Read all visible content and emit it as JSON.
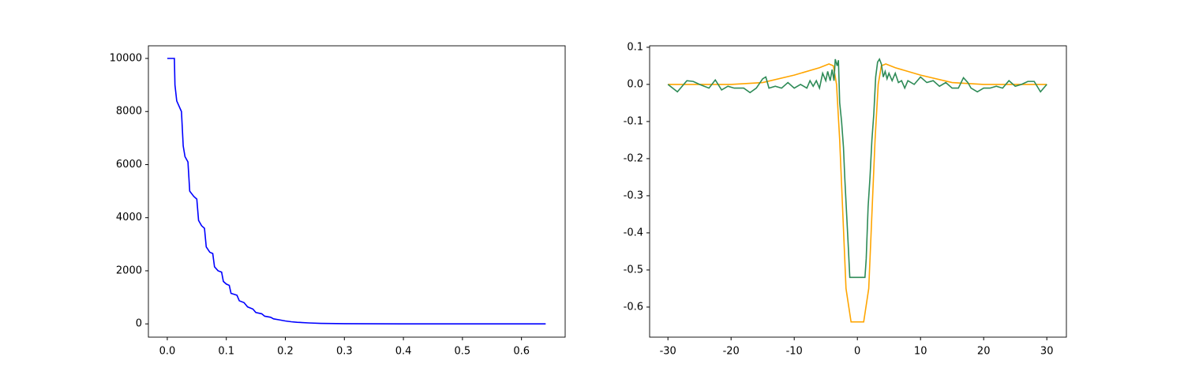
{
  "chart_data": [
    {
      "type": "line",
      "xlim": [
        -0.032,
        0.674
      ],
      "xticks": [
        {
          "value": 0,
          "label": "0.0"
        },
        0.1,
        0.2,
        0.3,
        0.4,
        0.5,
        0.6
      ],
      "ylim": [
        -500,
        10476
      ],
      "yticks": [
        0,
        2000,
        4000,
        6000,
        8000,
        10000
      ],
      "series": [
        {
          "color": "#0000ff",
          "x": [
            0.0,
            0.012,
            0.013,
            0.016,
            0.02,
            0.024,
            0.027,
            0.03,
            0.035,
            0.038,
            0.045,
            0.05,
            0.053,
            0.058,
            0.063,
            0.066,
            0.072,
            0.077,
            0.08,
            0.086,
            0.092,
            0.095,
            0.1,
            0.105,
            0.108,
            0.118,
            0.122,
            0.13,
            0.136,
            0.145,
            0.15,
            0.16,
            0.165,
            0.175,
            0.18,
            0.19,
            0.2,
            0.21,
            0.22,
            0.24,
            0.26,
            0.3,
            0.35,
            0.4,
            0.5,
            0.641
          ],
          "values": [
            10000,
            10000,
            9000,
            8400,
            8200,
            8000,
            6700,
            6300,
            6100,
            5000,
            4800,
            4700,
            3900,
            3700,
            3600,
            2900,
            2700,
            2650,
            2150,
            2000,
            1950,
            1600,
            1500,
            1450,
            1150,
            1080,
            870,
            800,
            640,
            560,
            430,
            380,
            290,
            250,
            190,
            150,
            110,
            80,
            60,
            35,
            20,
            8,
            3,
            1,
            0,
            0
          ]
        }
      ]
    },
    {
      "type": "line",
      "xlim": [
        -32.9,
        33.1
      ],
      "xticks": [
        -30,
        -20,
        -10,
        0,
        10,
        20,
        30
      ],
      "ylim": [
        -0.681,
        0.104
      ],
      "yticks": [
        -0.6,
        -0.5,
        -0.4,
        -0.3,
        -0.2,
        -0.1,
        {
          "value": 0,
          "label": "0.0"
        },
        0.1
      ],
      "series": [
        {
          "color": "#ffa500",
          "x": [
            -30,
            -20,
            -15,
            -10,
            -6,
            -4.5,
            -3.8,
            -3.3,
            -2.8,
            -2.3,
            -1.8,
            -1,
            1,
            1.8,
            2.3,
            2.8,
            3.3,
            3.8,
            4.5,
            6,
            10,
            15,
            20,
            30
          ],
          "values": [
            0,
            0,
            0.005,
            0.025,
            0.045,
            0.055,
            0.05,
            0,
            -0.15,
            -0.35,
            -0.55,
            -0.64,
            -0.64,
            -0.55,
            -0.35,
            -0.15,
            0,
            0.05,
            0.055,
            0.045,
            0.025,
            0.005,
            0,
            0
          ]
        },
        {
          "color": "#2e8b57",
          "x": [
            -30,
            -28.5,
            -27,
            -26,
            -25,
            -23.5,
            -22.5,
            -21.5,
            -20.5,
            -19.5,
            -18,
            -17,
            -16,
            -15,
            -14.5,
            -14,
            -13,
            -12,
            -11,
            -10,
            -9,
            -8,
            -7.5,
            -7,
            -6.5,
            -6,
            -5.5,
            -5,
            -4.7,
            -4.3,
            -4,
            -3.7,
            -3.5,
            -3.2,
            -3,
            -2.8,
            -2.5,
            -2.2,
            -2,
            -1.7,
            -1.4,
            -1.2,
            1.2,
            1.4,
            1.7,
            2,
            2.3,
            2.6,
            2.9,
            3.2,
            3.5,
            3.8,
            4.1,
            4.4,
            4.7,
            5,
            5.5,
            6,
            6.5,
            7,
            7.5,
            8,
            9,
            10,
            11,
            12,
            13,
            14,
            15,
            16,
            16.8,
            17.5,
            18,
            19,
            20,
            21,
            22,
            23,
            24,
            25,
            26,
            27,
            28,
            29,
            30
          ],
          "values": [
            0,
            -0.02,
            0.01,
            0.008,
            0,
            -0.01,
            0.012,
            -0.015,
            -0.005,
            -0.01,
            -0.01,
            -0.022,
            -0.01,
            0.015,
            0.02,
            -0.01,
            -0.005,
            -0.01,
            0.005,
            -0.01,
            0,
            -0.01,
            0.01,
            -0.005,
            0.01,
            -0.01,
            0.03,
            0.01,
            0.035,
            0.01,
            0.04,
            0.01,
            0.068,
            0.05,
            0.065,
            -0.05,
            -0.1,
            -0.17,
            -0.25,
            -0.35,
            -0.45,
            -0.52,
            -0.52,
            -0.47,
            -0.33,
            -0.25,
            -0.15,
            -0.08,
            0.02,
            0.06,
            0.068,
            0.055,
            0.02,
            0.035,
            0.015,
            0.03,
            0.01,
            0.03,
            0.005,
            0.01,
            -0.01,
            0.01,
            0,
            0.02,
            0.005,
            0.01,
            -0.005,
            0.005,
            -0.01,
            -0.01,
            0.018,
            0.005,
            -0.01,
            -0.02,
            -0.01,
            -0.01,
            -0.005,
            -0.01,
            0.01,
            -0.005,
            0,
            0.008,
            0.008,
            -0.02,
            0
          ]
        }
      ]
    }
  ]
}
